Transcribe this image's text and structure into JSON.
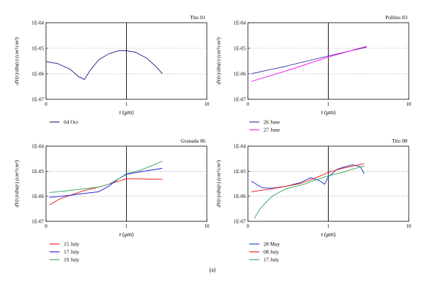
{
  "figure_label": "(a)",
  "chart_data": [
    {
      "type": "line",
      "title": "Tito 01",
      "xlabel": "r (μm)",
      "ylabel": "dV(r)/dln(r) (cm³/cm²)",
      "x_scale": "log",
      "y_scale": "log",
      "xlim": [
        0.1,
        10
      ],
      "ylim": [
        1e-07,
        0.0001
      ],
      "x_ticks": [
        {
          "value": 0.1,
          "label": "0"
        },
        {
          "value": 1,
          "label": "1"
        },
        {
          "value": 10,
          "label": "10"
        }
      ],
      "y_ticks": [
        {
          "value": 1e-07,
          "label": "1E-07"
        },
        {
          "value": 1e-06,
          "label": "1E-06"
        },
        {
          "value": 1e-05,
          "label": "1E-05"
        },
        {
          "value": 0.0001,
          "label": "1E-04"
        }
      ],
      "grid": "horizontal dotted",
      "vline_x": 1,
      "legend_position": "below",
      "series": [
        {
          "name": "04 Oct",
          "color": "#2b2b8f",
          "x": [
            0.1,
            0.14,
            0.2,
            0.25,
            0.3,
            0.35,
            0.45,
            0.6,
            0.8,
            1.0,
            1.3,
            1.8,
            2.3,
            2.8
          ],
          "y": [
            3e-06,
            2.5e-06,
            1.5e-06,
            8e-07,
            6e-07,
            1.3e-06,
            3.5e-06,
            6e-06,
            8e-06,
            8e-06,
            7e-06,
            4e-06,
            2e-06,
            1e-06
          ]
        }
      ]
    },
    {
      "type": "line",
      "title": "Pollino 03",
      "xlabel": "r (μm)",
      "ylabel": "dV(r)/dln(r) (cm³/cm²)",
      "x_scale": "log",
      "y_scale": "log",
      "xlim": [
        0.1,
        10
      ],
      "ylim": [
        1e-07,
        0.0001
      ],
      "x_ticks": [
        {
          "value": 0.1,
          "label": "0"
        },
        {
          "value": 1,
          "label": "1"
        },
        {
          "value": 10,
          "label": "10"
        }
      ],
      "y_ticks": [
        {
          "value": 1e-07,
          "label": "1E-07"
        },
        {
          "value": 1e-06,
          "label": "1E-06"
        },
        {
          "value": 1e-05,
          "label": "1E-05"
        },
        {
          "value": 0.0001,
          "label": "1E-04"
        }
      ],
      "grid": "horizontal dotted",
      "vline_x": 1,
      "legend_position": "below",
      "series": [
        {
          "name": "26 June",
          "color": "#3d3d9e",
          "x": [
            0.11,
            0.3,
            1.0,
            3.0
          ],
          "y": [
            1e-06,
            2e-06,
            5e-06,
            1.1e-05
          ]
        },
        {
          "name": "27 June",
          "color": "#ee22ee",
          "x": [
            0.11,
            0.3,
            1.0,
            3.0
          ],
          "y": [
            5e-07,
            1.3e-06,
            4.5e-06,
            1.2e-05
          ]
        }
      ]
    },
    {
      "type": "line",
      "title": "Granada 06",
      "xlabel": "r (μm)",
      "ylabel": "dV(r)/dln(r) (cm³/cm²)",
      "x_scale": "log",
      "y_scale": "log",
      "xlim": [
        0.1,
        10
      ],
      "ylim": [
        1e-07,
        0.0001
      ],
      "x_ticks": [
        {
          "value": 0.1,
          "label": "0"
        },
        {
          "value": 1,
          "label": "1"
        },
        {
          "value": 10,
          "label": "10"
        }
      ],
      "y_ticks": [
        {
          "value": 1e-07,
          "label": "1E-07"
        },
        {
          "value": 1e-06,
          "label": "1E-06"
        },
        {
          "value": 1e-05,
          "label": "1E-05"
        },
        {
          "value": 0.0001,
          "label": "1E-04"
        }
      ],
      "grid": "horizontal dotted",
      "vline_x": 1,
      "legend_position": "below",
      "series": [
        {
          "name": "15 July",
          "color": "#ee2222",
          "x": [
            0.11,
            0.15,
            0.2,
            0.3,
            0.45,
            0.6,
            0.8,
            1.0,
            1.5,
            2.0,
            2.8
          ],
          "y": [
            4.5e-07,
            8e-07,
            1.1e-06,
            1.7e-06,
            2.3e-06,
            3e-06,
            4e-06,
            5e-06,
            5e-06,
            4.8e-06,
            4.8e-06
          ]
        },
        {
          "name": "17 July",
          "color": "#2222dd",
          "x": [
            0.11,
            0.15,
            0.2,
            0.3,
            0.45,
            0.6,
            0.8,
            1.0,
            1.5,
            2.0,
            2.8
          ],
          "y": [
            9e-07,
            1e-06,
            1.1e-06,
            1.3e-06,
            1.5e-06,
            2.5e-06,
            5e-06,
            7.5e-06,
            9.5e-06,
            1.1e-05,
            1.3e-05
          ]
        },
        {
          "name": "19 July",
          "color": "#44aa66",
          "x": [
            0.11,
            0.2,
            0.3,
            0.45,
            0.6,
            0.8,
            1.0,
            1.5,
            2.0,
            2.8
          ],
          "y": [
            1.4e-06,
            1.7e-06,
            2e-06,
            2.3e-06,
            3e-06,
            5e-06,
            8e-06,
            1.1e-05,
            1.6e-05,
            2.5e-05
          ]
        }
      ]
    },
    {
      "type": "line",
      "title": "Tito 08",
      "xlabel": "r (μm)",
      "ylabel": "dV(r)/dln(r) (cm³/cm²)",
      "x_scale": "log",
      "y_scale": "log",
      "xlim": [
        0.1,
        10
      ],
      "ylim": [
        1e-07,
        0.0001
      ],
      "x_ticks": [
        {
          "value": 0.1,
          "label": "0"
        },
        {
          "value": 1,
          "label": "1"
        },
        {
          "value": 10,
          "label": "10"
        }
      ],
      "y_ticks": [
        {
          "value": 1e-07,
          "label": "1E-07"
        },
        {
          "value": 1e-06,
          "label": "1E-06"
        },
        {
          "value": 1e-05,
          "label": "1E-05"
        },
        {
          "value": 0.0001,
          "label": "1E-04"
        }
      ],
      "grid": "horizontal dotted",
      "vline_x": 1,
      "legend_position": "below",
      "series": [
        {
          "name": "28 May",
          "color": "#2244cc",
          "x": [
            0.11,
            0.15,
            0.2,
            0.3,
            0.45,
            0.6,
            0.8,
            0.9,
            1.0,
            1.3,
            1.6,
            2.0,
            2.5,
            2.8
          ],
          "y": [
            4e-06,
            2.2e-06,
            2.1e-06,
            2.5e-06,
            3.5e-06,
            5.5e-06,
            4e-06,
            3e-06,
            6e-06,
            1.2e-05,
            1.5e-05,
            1.8e-05,
            1.5e-05,
            8e-06
          ]
        },
        {
          "name": "08 July",
          "color": "#ee2222",
          "x": [
            0.11,
            0.2,
            0.3,
            0.45,
            0.6,
            0.8,
            1.0,
            1.5,
            2.0,
            2.8
          ],
          "y": [
            1.5e-06,
            2e-06,
            2.5e-06,
            3.2e-06,
            4.5e-06,
            6.5e-06,
            9e-06,
            1.3e-05,
            1.6e-05,
            2e-05
          ]
        },
        {
          "name": "17 July",
          "color": "#44aa66",
          "x": [
            0.12,
            0.14,
            0.17,
            0.2,
            0.25,
            0.3,
            0.4,
            0.5,
            0.7,
            1.0,
            1.5,
            2.0,
            2.8
          ],
          "y": [
            1.3e-07,
            3e-07,
            6e-07,
            1e-06,
            1.5e-06,
            2e-06,
            2.5e-06,
            3e-06,
            4.5e-06,
            6.5e-06,
            9e-06,
            1.2e-05,
            1.6e-05
          ]
        }
      ]
    }
  ]
}
